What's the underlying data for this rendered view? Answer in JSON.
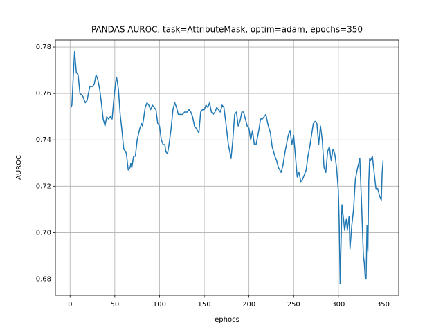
{
  "chart_data": {
    "type": "line",
    "title": "PANDAS AUROC, task=AttributeMask, optim=adam, epochs=350",
    "x_label": "ephocs",
    "y_label": "AUROC",
    "xlim": [
      -16.45,
      367.45
    ],
    "ylim": [
      0.673,
      0.783
    ],
    "xticks": [
      0,
      50,
      100,
      150,
      200,
      250,
      300,
      350
    ],
    "yticks": [
      0.68,
      {
        "value": 0.7,
        "label": "0.70"
      },
      0.72,
      0.74,
      0.76,
      0.78
    ],
    "grid": true,
    "x": [
      1,
      2,
      4,
      5,
      7,
      9,
      11,
      14,
      17,
      19,
      22,
      25,
      27,
      29,
      31,
      33,
      35,
      37,
      39,
      41,
      43,
      45,
      47,
      49,
      51,
      52,
      54,
      56,
      58,
      60,
      62,
      63,
      65,
      67,
      68,
      69,
      71,
      73,
      75,
      78,
      80,
      81,
      84,
      86,
      88,
      90,
      92,
      94,
      96,
      98,
      100,
      102,
      104,
      106,
      107,
      109,
      111,
      113,
      115,
      117,
      119,
      121,
      123,
      126,
      128,
      131,
      133,
      135,
      137,
      139,
      141,
      144,
      146,
      148,
      150,
      152,
      154,
      156,
      158,
      160,
      162,
      164,
      166,
      168,
      170,
      172,
      174,
      177,
      180,
      182,
      184,
      186,
      188,
      190,
      192,
      194,
      196,
      198,
      200,
      202,
      204,
      206,
      208,
      211,
      213,
      215,
      217,
      219,
      221,
      224,
      226,
      229,
      231,
      233,
      236,
      238,
      240,
      242,
      244,
      246,
      248,
      250,
      252,
      254,
      256,
      258,
      260,
      262,
      264,
      266,
      268,
      270,
      272,
      274,
      276,
      278,
      280,
      282,
      284,
      286,
      288,
      290,
      292,
      294,
      296,
      298,
      300,
      301,
      302,
      304,
      306,
      307,
      309,
      310,
      312,
      313,
      315,
      317,
      319,
      321,
      324,
      326,
      328,
      329,
      330,
      331,
      332,
      333,
      334,
      335,
      336,
      338,
      340,
      342,
      344,
      346,
      348,
      349,
      350
    ],
    "series": [
      {
        "name": "AUROC",
        "color": "#1f77b4",
        "values": [
          0.754,
          0.755,
          0.771,
          0.778,
          0.769,
          0.768,
          0.76,
          0.759,
          0.756,
          0.757,
          0.763,
          0.763,
          0.764,
          0.768,
          0.766,
          0.762,
          0.756,
          0.749,
          0.746,
          0.75,
          0.749,
          0.75,
          0.749,
          0.758,
          0.765,
          0.767,
          0.762,
          0.751,
          0.744,
          0.736,
          0.735,
          0.734,
          0.727,
          0.728,
          0.73,
          0.728,
          0.733,
          0.733,
          0.74,
          0.745,
          0.747,
          0.746,
          0.754,
          0.756,
          0.755,
          0.753,
          0.755,
          0.754,
          0.753,
          0.747,
          0.746,
          0.74,
          0.738,
          0.738,
          0.735,
          0.734,
          0.739,
          0.745,
          0.753,
          0.756,
          0.754,
          0.751,
          0.751,
          0.751,
          0.752,
          0.752,
          0.753,
          0.752,
          0.75,
          0.746,
          0.745,
          0.743,
          0.752,
          0.753,
          0.753,
          0.755,
          0.754,
          0.756,
          0.752,
          0.751,
          0.752,
          0.754,
          0.753,
          0.752,
          0.755,
          0.754,
          0.748,
          0.738,
          0.732,
          0.74,
          0.751,
          0.752,
          0.746,
          0.748,
          0.752,
          0.752,
          0.749,
          0.746,
          0.745,
          0.74,
          0.744,
          0.738,
          0.738,
          0.744,
          0.749,
          0.749,
          0.75,
          0.751,
          0.747,
          0.743,
          0.737,
          0.733,
          0.731,
          0.728,
          0.726,
          0.729,
          0.734,
          0.738,
          0.742,
          0.744,
          0.738,
          0.742,
          0.733,
          0.724,
          0.726,
          0.722,
          0.723,
          0.725,
          0.727,
          0.733,
          0.737,
          0.742,
          0.747,
          0.748,
          0.747,
          0.738,
          0.746,
          0.74,
          0.728,
          0.726,
          0.735,
          0.737,
          0.731,
          0.736,
          0.734,
          0.728,
          0.718,
          0.703,
          0.678,
          0.712,
          0.705,
          0.701,
          0.706,
          0.701,
          0.707,
          0.693,
          0.703,
          0.71,
          0.723,
          0.727,
          0.732,
          0.712,
          0.69,
          0.687,
          0.681,
          0.68,
          0.703,
          0.692,
          0.722,
          0.732,
          0.731,
          0.733,
          0.726,
          0.719,
          0.719,
          0.716,
          0.714,
          0.726,
          0.731
        ]
      }
    ]
  }
}
